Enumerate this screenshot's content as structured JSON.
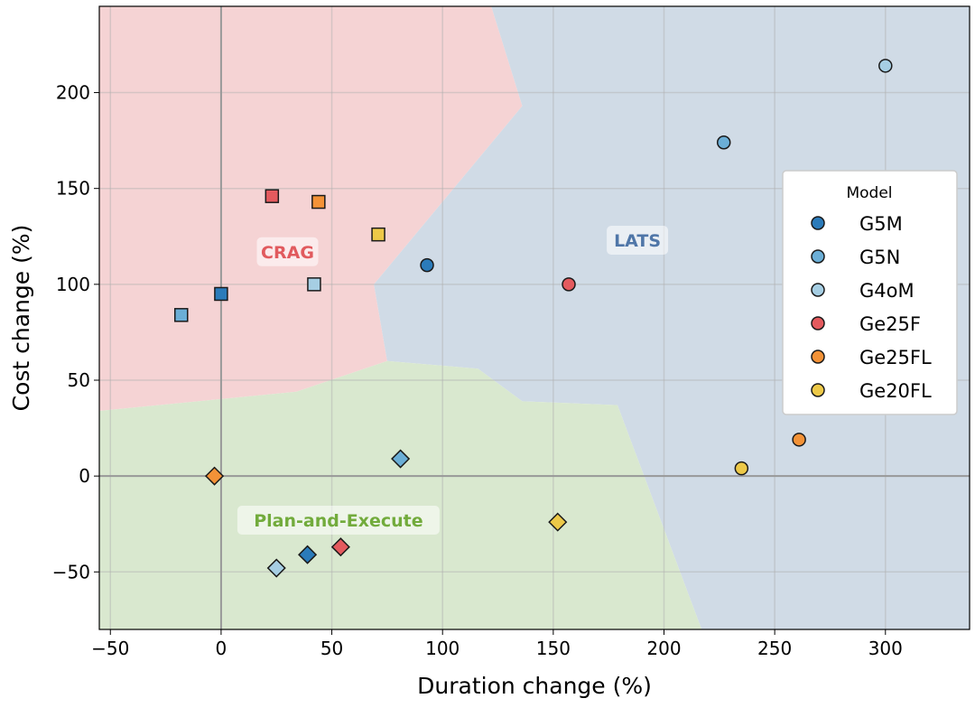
{
  "chart_data": {
    "type": "scatter",
    "title": "",
    "xlabel": "Duration change (%)",
    "ylabel": "Cost change (%)",
    "xlim": [
      -55,
      338
    ],
    "ylim": [
      -80,
      245
    ],
    "xticks": [
      -50,
      0,
      50,
      100,
      150,
      200,
      250,
      300
    ],
    "yticks": [
      -50,
      0,
      50,
      100,
      150,
      200
    ],
    "grid": true,
    "legend": {
      "title": "Model",
      "placement": "right"
    },
    "models": [
      {
        "name": "G5M",
        "color": "#2b7bba"
      },
      {
        "name": "G5N",
        "color": "#6baed6"
      },
      {
        "name": "G4oM",
        "color": "#a6cee3"
      },
      {
        "name": "Ge25F",
        "color": "#e45a5e"
      },
      {
        "name": "Ge25FL",
        "color": "#f39237"
      },
      {
        "name": "Ge20FL",
        "color": "#edc948"
      }
    ],
    "regions": [
      {
        "label": "CRAG",
        "color": "#f5d3d4",
        "label_color": "#e15a5e",
        "marker": "square",
        "label_at": [
          30,
          117
        ],
        "polygon": [
          [
            -55,
            245
          ],
          [
            122,
            245
          ],
          [
            136,
            193
          ],
          [
            69,
            100
          ],
          [
            75,
            60
          ],
          [
            34,
            44
          ],
          [
            -55,
            34
          ]
        ]
      },
      {
        "label": "LATS",
        "color": "#d0dbe6",
        "label_color": "#4f76a8",
        "marker": "circle",
        "label_at": [
          188,
          123
        ],
        "polygon": [
          [
            122,
            245
          ],
          [
            338,
            245
          ],
          [
            338,
            -80
          ],
          [
            217,
            -80
          ],
          [
            179,
            37
          ],
          [
            136,
            39
          ],
          [
            116,
            56
          ],
          [
            75,
            60
          ],
          [
            69,
            100
          ],
          [
            136,
            193
          ]
        ]
      },
      {
        "label": "Plan-and-Execute",
        "color": "#d9e8cf",
        "label_color": "#72ab3c",
        "marker": "diamond",
        "label_at": [
          53,
          -23
        ],
        "polygon": [
          [
            -55,
            34
          ],
          [
            34,
            44
          ],
          [
            75,
            60
          ],
          [
            116,
            56
          ],
          [
            136,
            39
          ],
          [
            179,
            37
          ],
          [
            217,
            -80
          ],
          [
            -55,
            -80
          ]
        ]
      }
    ],
    "points": [
      {
        "model": "G5N",
        "marker": "square",
        "x": -18,
        "y": 84
      },
      {
        "model": "G5M",
        "marker": "square",
        "x": 0,
        "y": 95
      },
      {
        "model": "Ge25F",
        "marker": "square",
        "x": 23,
        "y": 146
      },
      {
        "model": "Ge25FL",
        "marker": "square",
        "x": 44,
        "y": 143
      },
      {
        "model": "Ge20FL",
        "marker": "square",
        "x": 71,
        "y": 126
      },
      {
        "model": "G4oM",
        "marker": "square",
        "x": 42,
        "y": 100
      },
      {
        "model": "G5M",
        "marker": "circle",
        "x": 93,
        "y": 110
      },
      {
        "model": "Ge25F",
        "marker": "circle",
        "x": 157,
        "y": 100
      },
      {
        "model": "G5N",
        "marker": "circle",
        "x": 227,
        "y": 174
      },
      {
        "model": "G4oM",
        "marker": "circle",
        "x": 300,
        "y": 214
      },
      {
        "model": "Ge25FL",
        "marker": "circle",
        "x": 261,
        "y": 19
      },
      {
        "model": "Ge20FL",
        "marker": "circle",
        "x": 235,
        "y": 4
      },
      {
        "model": "Ge25FL",
        "marker": "diamond",
        "x": -3,
        "y": 0
      },
      {
        "model": "G5N",
        "marker": "diamond",
        "x": 81,
        "y": 9
      },
      {
        "model": "G5M",
        "marker": "diamond",
        "x": 39,
        "y": -41
      },
      {
        "model": "Ge25F",
        "marker": "diamond",
        "x": 54,
        "y": -37
      },
      {
        "model": "G4oM",
        "marker": "diamond",
        "x": 25,
        "y": -48
      },
      {
        "model": "Ge20FL",
        "marker": "diamond",
        "x": 152,
        "y": -24
      }
    ]
  }
}
